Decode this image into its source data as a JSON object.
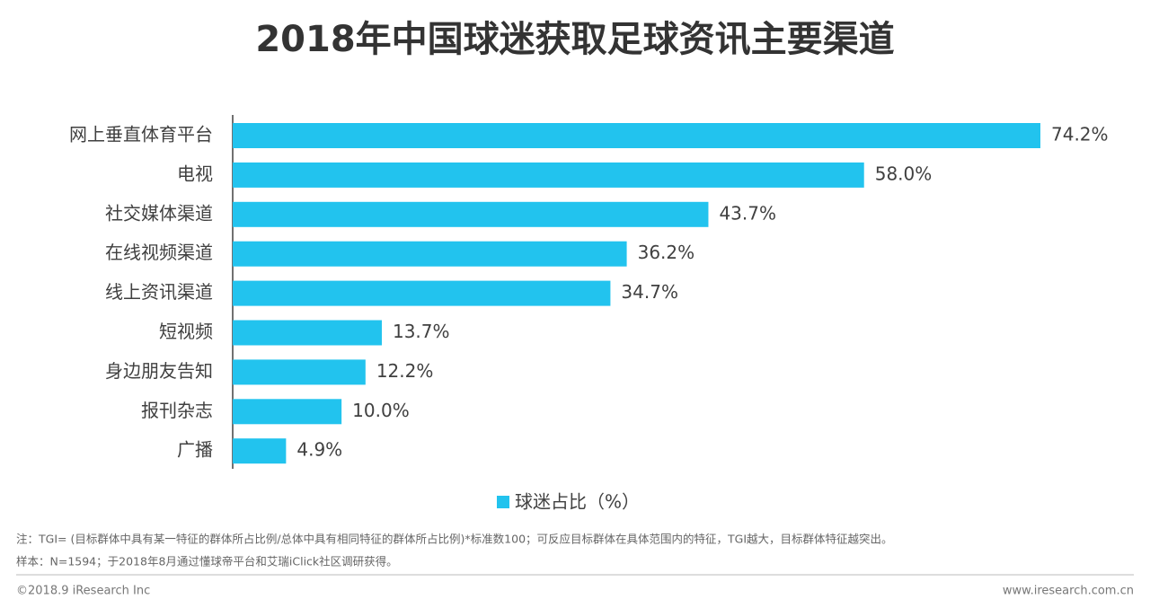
{
  "chart_data": {
    "type": "bar",
    "orientation": "horizontal",
    "title": "2018年中国球迷获取足球资讯主要渠道",
    "categories": [
      "网上垂直体育平台",
      "电视",
      "社交媒体渠道",
      "在线视频渠道",
      "线上资讯渠道",
      "短视频",
      "身边朋友告知",
      "报刊杂志",
      "广播"
    ],
    "series": [
      {
        "name": "球迷占比（%）",
        "color": "#22c3ee",
        "values": [
          74.2,
          58.0,
          43.7,
          36.2,
          34.7,
          13.7,
          12.2,
          10.0,
          4.9
        ],
        "value_labels": [
          "74.2%",
          "58.0%",
          "43.7%",
          "36.2%",
          "34.7%",
          "13.7%",
          "12.2%",
          "10.0%",
          "4.9%"
        ]
      }
    ],
    "legend": "bottom"
  },
  "notes": [
    "注：TGI= (目标群体中具有某一特征的群体所占比例/总体中具有相同特征的群体所占比例)*标准数100；可反应目标群体在具体范围内的特征，TGI越大，目标群体特征越突出。",
    "样本：N=1594；于2018年8月通过懂球帝平台和艾瑞iClick社区调研获得。"
  ],
  "footer": {
    "left": "©2018.9 iResearch Inc",
    "right": "www.iresearch.com.cn"
  }
}
